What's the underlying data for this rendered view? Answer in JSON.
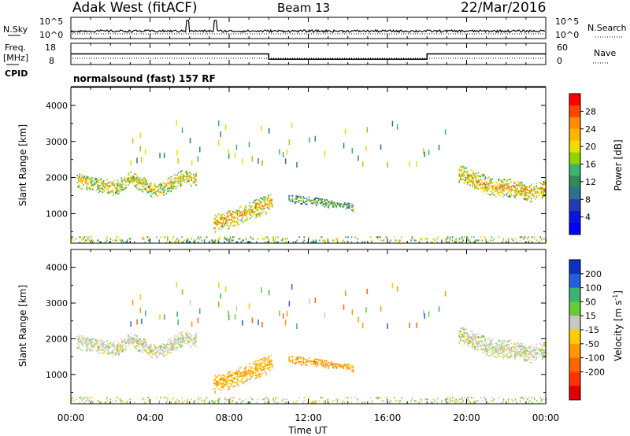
{
  "header": {
    "station": "Adak West (fitACF)",
    "beam": "Beam 13",
    "date": "22/Mar/2016"
  },
  "noise_panel": {
    "left_label": "N.Sky",
    "right_label": "N.Search",
    "left_ticks": [
      "10^5",
      "10^0"
    ],
    "right_ticks": [
      "10^5",
      "10^0"
    ]
  },
  "freq_panel": {
    "left_label_1": "Freq.",
    "left_label_2": "[MHz]",
    "right_label": "Nave",
    "left_ticks": [
      "18",
      "8"
    ],
    "right_ticks": [
      "60",
      "0"
    ]
  },
  "cpid": {
    "label": "CPID",
    "text": "normalsound (fast) 157 RF"
  },
  "power_panel": {
    "ylabel": "Slant Range [km]",
    "yticks": [
      "4000",
      "3000",
      "2000",
      "1000"
    ],
    "colorbar_label": "Power [dB]",
    "colorbar_ticks": [
      "28",
      "24",
      "20",
      "16",
      "12",
      "8",
      "4"
    ],
    "colorbar_colors": [
      "#ff0000",
      "#ff4500",
      "#ff8c00",
      "#ffb400",
      "#f0dc00",
      "#8fd400",
      "#3cb371",
      "#2e8b57",
      "#2e6e8e",
      "#1e3cb4",
      "#0a14dc",
      "#0000ff"
    ]
  },
  "velocity_panel": {
    "ylabel": "Slant Range [km]",
    "yticks": [
      "4000",
      "3000",
      "2000",
      "1000"
    ],
    "colorbar_label": "Velocity [m s",
    "colorbar_label_sup": "-1",
    "colorbar_label_end": "]",
    "colorbar_ticks": [
      "200",
      "100",
      "50",
      "15",
      "-15",
      "-50",
      "-100",
      "-200"
    ],
    "colorbar_colors": [
      "#1030c0",
      "#2060e0",
      "#3cb371",
      "#66cc33",
      "#c8c8c0",
      "#ffcc00",
      "#ff9900",
      "#ff6600",
      "#ff3300",
      "#e00000"
    ]
  },
  "xaxis": {
    "label": "Time UT",
    "ticks": [
      "00:00",
      "04:00",
      "08:00",
      "12:00",
      "16:00",
      "20:00",
      "00:00"
    ]
  },
  "chart_data": {
    "type": "heatmap",
    "x_unit": "hours UT",
    "xlim": [
      0,
      24
    ],
    "ylim_km": [
      180,
      4500
    ],
    "frequency_schedule": [
      {
        "start_h": 0,
        "end_h": 10,
        "freq_mhz": 13
      },
      {
        "start_h": 10,
        "end_h": 18,
        "freq_mhz": 10.5
      },
      {
        "start_h": 18,
        "end_h": 24,
        "freq_mhz": 13
      }
    ],
    "noise_spikes_h": [
      5.9,
      7.3
    ],
    "echo_regions": [
      {
        "name": "early-band",
        "t0": 0.3,
        "t1": 6.3,
        "r_center": [
          1900,
          1850,
          1750,
          1700,
          1950,
          1800,
          1600,
          1800,
          2000,
          1950
        ],
        "r_halfwidth": 220,
        "power_db": 14,
        "velocity": 0
      },
      {
        "name": "morning-patch",
        "t0": 7.2,
        "t1": 10.2,
        "r_center": [
          700,
          850,
          1100,
          1300
        ],
        "r_halfwidth": 250,
        "power_db": 16,
        "velocity": -60
      },
      {
        "name": "midday-patch",
        "t0": 11.0,
        "t1": 14.3,
        "r_center": [
          1400,
          1350,
          1250,
          1150
        ],
        "r_halfwidth": 120,
        "power_db": 8,
        "velocity": -70
      },
      {
        "name": "late-band",
        "t0": 19.6,
        "t1": 24.0,
        "r_center": [
          2100,
          1900,
          1700,
          1700,
          1550,
          1650
        ],
        "r_halfwidth": 250,
        "power_db": 16,
        "velocity": 0
      },
      {
        "name": "ground-near",
        "t0": 0,
        "t1": 24,
        "r_center": [
          280
        ],
        "r_halfwidth": 90,
        "power_db": 12,
        "velocity": 5
      }
    ]
  }
}
